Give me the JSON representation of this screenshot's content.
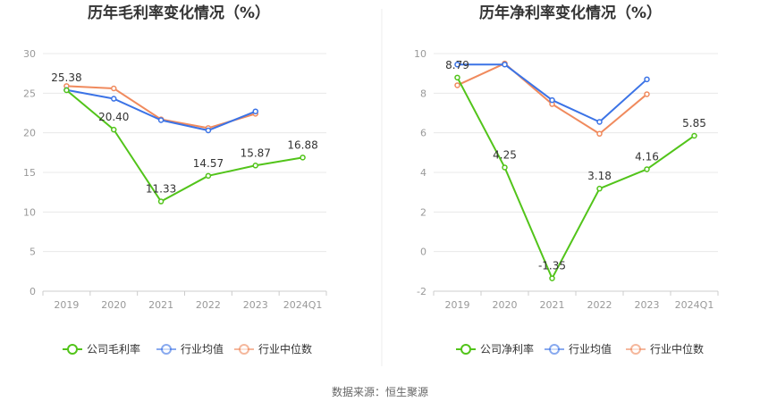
{
  "source_note": "数据来源：恒生聚源",
  "chart_data": [
    {
      "type": "line",
      "title": "历年毛利率变化情况（%）",
      "categories": [
        "2019",
        "2020",
        "2021",
        "2022",
        "2023",
        "2024Q1"
      ],
      "ylim": [
        0,
        30
      ],
      "yticks": [
        0,
        5,
        10,
        15,
        20,
        25,
        30
      ],
      "grid": true,
      "legend_position": "bottom",
      "series": [
        {
          "name": "公司毛利率",
          "color": "#52c41a",
          "values": [
            25.38,
            20.4,
            11.33,
            14.57,
            15.87,
            16.88
          ],
          "labels": [
            "25.38",
            "20.40",
            "11.33",
            "14.57",
            "15.87",
            "16.88"
          ]
        },
        {
          "name": "行业均值",
          "color": "#3b73e6",
          "values": [
            25.4,
            24.3,
            21.6,
            20.3,
            22.7,
            null
          ]
        },
        {
          "name": "行业中位数",
          "color": "#f08a5d",
          "values": [
            25.9,
            25.6,
            21.7,
            20.6,
            22.4,
            null
          ]
        }
      ]
    },
    {
      "type": "line",
      "title": "历年净利率变化情况（%）",
      "categories": [
        "2019",
        "2020",
        "2021",
        "2022",
        "2023",
        "2024Q1"
      ],
      "ylim": [
        -2,
        10
      ],
      "yticks": [
        -2,
        0,
        2,
        4,
        6,
        8,
        10
      ],
      "grid": true,
      "legend_position": "bottom",
      "series": [
        {
          "name": "公司净利率",
          "color": "#52c41a",
          "values": [
            8.79,
            4.25,
            -1.35,
            3.18,
            4.16,
            5.85
          ],
          "labels": [
            "8.79",
            "4.25",
            "-1.35",
            "3.18",
            "4.16",
            "5.85"
          ]
        },
        {
          "name": "行业均值",
          "color": "#3b73e6",
          "values": [
            9.45,
            9.45,
            7.65,
            6.55,
            8.7,
            null
          ]
        },
        {
          "name": "行业中位数",
          "color": "#f08a5d",
          "values": [
            8.4,
            9.5,
            7.45,
            5.95,
            7.95,
            null
          ]
        }
      ]
    }
  ]
}
